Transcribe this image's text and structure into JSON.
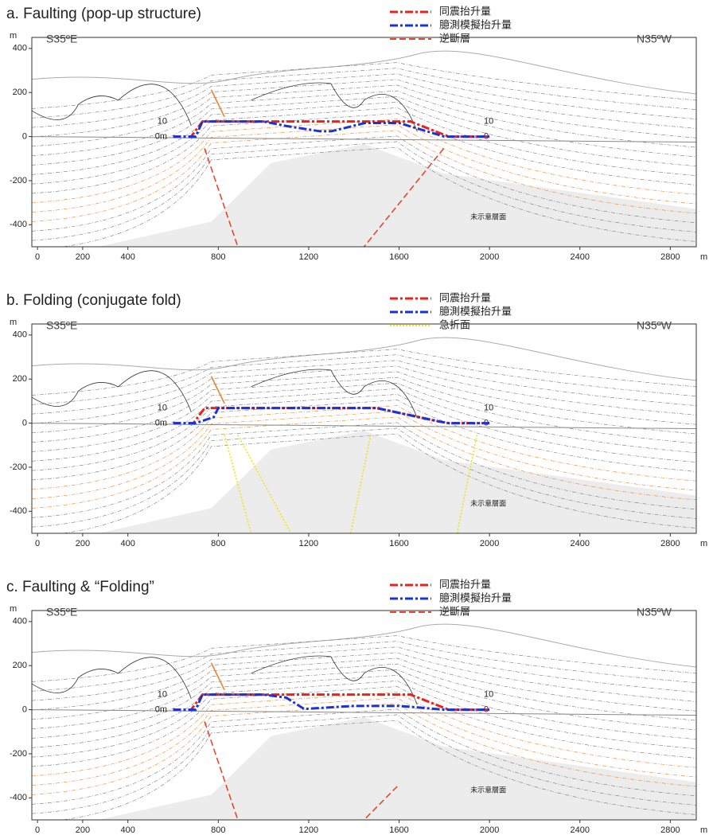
{
  "chart_data": [
    {
      "type": "line",
      "title": "a. Faulting (pop-up structure)",
      "direction_left": "S35ºE",
      "direction_right": "N35ºW",
      "axis_unit": "m",
      "x_unit": "m",
      "annotation": "未示意層面",
      "xlim": [
        -25,
        2915
      ],
      "ylim": [
        -500,
        450
      ],
      "xticks": [
        0,
        200,
        400,
        800,
        1200,
        1600,
        2000,
        2400,
        2800
      ],
      "yticks": [
        -400,
        -200,
        0,
        200,
        400
      ],
      "y2lim": [
        0,
        10
      ],
      "y2ticks": [
        {
          "value": 0,
          "label": "0m"
        },
        10
      ],
      "y2ticks_right": [
        0,
        10
      ],
      "structure": {
        "name": "逆斷層",
        "color": "#e8472c",
        "kind": "fault"
      },
      "series": [
        {
          "name": "同震抬升量",
          "color": "#e8231f",
          "axis": "y2",
          "x": [
            600,
            680,
            730,
            1650,
            1820,
            2000
          ],
          "values": [
            0,
            0,
            10,
            10,
            0,
            0
          ]
        },
        {
          "name": "臆測模擬抬升量",
          "color": "#1a33d6",
          "axis": "y2",
          "x": [
            600,
            700,
            730,
            1000,
            1100,
            1250,
            1300,
            1450,
            1600,
            1800,
            2000
          ],
          "values": [
            0,
            0,
            10,
            10,
            7,
            3.5,
            3.5,
            9,
            9,
            0,
            0
          ]
        }
      ]
    },
    {
      "type": "line",
      "title": "b. Folding (conjugate fold)",
      "direction_left": "S35ºE",
      "direction_right": "N35ºW",
      "axis_unit": "m",
      "x_unit": "m",
      "annotation": "未示意層面",
      "xlim": [
        -25,
        2915
      ],
      "ylim": [
        -500,
        450
      ],
      "xticks": [
        0,
        200,
        400,
        800,
        1200,
        1600,
        2000,
        2400,
        2800
      ],
      "yticks": [
        -400,
        -200,
        0,
        200,
        400
      ],
      "y2lim": [
        0,
        10
      ],
      "y2ticks": [
        {
          "value": 0,
          "label": "0m"
        },
        10
      ],
      "y2ticks_right": [
        0,
        10
      ],
      "structure": {
        "name": "急折面",
        "color": "#f2e21a",
        "kind": "kink"
      },
      "series": [
        {
          "name": "同震抬升量",
          "color": "#e8231f",
          "axis": "y2",
          "x": [
            600,
            690,
            740,
            1500,
            1780,
            1820,
            2000
          ],
          "values": [
            0,
            0,
            10,
            10,
            1,
            0,
            0
          ]
        },
        {
          "name": "臆測模擬抬升量",
          "color": "#1a33d6",
          "axis": "y2",
          "x": [
            600,
            700,
            780,
            800,
            1500,
            1780,
            1820,
            2000
          ],
          "values": [
            0,
            0,
            4,
            10,
            10,
            1,
            0,
            0
          ]
        }
      ]
    },
    {
      "type": "line",
      "title": "c. Faulting & “Folding”",
      "direction_left": "S35ºE",
      "direction_right": "N35ºW",
      "axis_unit": "m",
      "x_unit": "m",
      "annotation": "未示意層面",
      "xlim": [
        -25,
        2915
      ],
      "ylim": [
        -500,
        450
      ],
      "xticks": [
        0,
        200,
        400,
        800,
        1200,
        1600,
        2000,
        2400,
        2800
      ],
      "yticks": [
        -400,
        -200,
        0,
        200,
        400
      ],
      "y2lim": [
        0,
        10
      ],
      "y2ticks": [
        {
          "value": 0,
          "label": "0m"
        },
        10
      ],
      "y2ticks_right": [
        0,
        10
      ],
      "structure": {
        "name": "逆斷層",
        "color": "#e8472c",
        "kind": "fault2"
      },
      "series": [
        {
          "name": "同震抬升量",
          "color": "#e8231f",
          "axis": "y2",
          "x": [
            600,
            680,
            730,
            1650,
            1820,
            2000
          ],
          "values": [
            0,
            0,
            10,
            10,
            0,
            0
          ]
        },
        {
          "name": "臆測模擬抬升量",
          "color": "#1a33d6",
          "axis": "y2",
          "x": [
            600,
            700,
            730,
            1000,
            1100,
            1180,
            1400,
            1600,
            1800,
            2000
          ],
          "values": [
            0,
            0,
            10,
            10,
            8,
            0.5,
            2.5,
            2.5,
            0,
            0
          ]
        }
      ]
    }
  ]
}
